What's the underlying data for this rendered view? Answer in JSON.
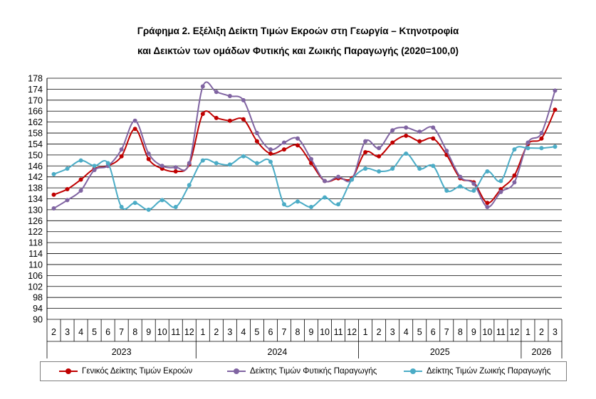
{
  "chart_data": {
    "type": "line",
    "title": "Γράφημα 2. Εξέλιξη Δείκτη Τιμών Εκροών στη Γεωργία – Κτηνοτροφία",
    "subtitle": "και Δεικτών των ομάδων Φυτικής και Ζωικής Παραγωγής (2020=100,0)",
    "ylim": [
      90,
      178
    ],
    "y_ticks": [
      90,
      94,
      98,
      102,
      106,
      110,
      114,
      118,
      122,
      126,
      130,
      134,
      138,
      142,
      146,
      150,
      154,
      158,
      162,
      166,
      170,
      174,
      178
    ],
    "grid": true,
    "legend_position": "bottom",
    "months": [
      "2",
      "3",
      "4",
      "5",
      "6",
      "7",
      "8",
      "9",
      "10",
      "11",
      "12",
      "1",
      "2",
      "3",
      "4",
      "5",
      "6",
      "7",
      "8",
      "9",
      "10",
      "11",
      "12",
      "1",
      "2",
      "3",
      "4",
      "5",
      "6",
      "7",
      "8",
      "9",
      "10",
      "11",
      "12",
      "1",
      "2",
      "3"
    ],
    "years": [
      {
        "label": "2023",
        "count": 11
      },
      {
        "label": "2024",
        "count": 12
      },
      {
        "label": "2025",
        "count": 12
      },
      {
        "label": "2026",
        "count": 3
      }
    ],
    "series": [
      {
        "name": "Γενικός Δείκτης Τιμών Εκροών",
        "color": "#c00000",
        "values": [
          135.5,
          137.5,
          141.0,
          145.0,
          146.0,
          149.5,
          159.5,
          148.5,
          145.0,
          144.0,
          146.5,
          165.0,
          163.5,
          162.5,
          163.0,
          155.0,
          150.5,
          152.0,
          153.5,
          147.0,
          140.5,
          141.5,
          141.5,
          151.0,
          149.5,
          154.5,
          157.0,
          155.0,
          156.0,
          150.0,
          141.5,
          140.0,
          132.5,
          137.5,
          142.5,
          154.0,
          156.0,
          166.5
        ]
      },
      {
        "name": "Δείκτης Τιμών Φυτικής Παραγωγής",
        "color": "#8064a2",
        "values": [
          130.5,
          133.5,
          137.0,
          144.5,
          146.0,
          152.0,
          162.5,
          150.5,
          146.0,
          145.5,
          147.0,
          175.0,
          173.0,
          171.5,
          170.0,
          158.0,
          152.0,
          154.5,
          156.0,
          148.5,
          140.5,
          142.0,
          141.0,
          155.0,
          152.5,
          159.0,
          160.0,
          158.5,
          160.0,
          151.5,
          142.0,
          139.5,
          131.0,
          136.5,
          140.0,
          154.5,
          158.0,
          173.5
        ]
      },
      {
        "name": "Δείκτης Τιμών Ζωικής Παραγωγής",
        "color": "#4bacc6",
        "values": [
          143.0,
          145.0,
          148.0,
          146.0,
          147.0,
          131.0,
          132.5,
          130.0,
          133.5,
          131.0,
          139.0,
          148.0,
          147.0,
          146.5,
          149.5,
          147.0,
          147.5,
          132.0,
          133.0,
          131.0,
          134.5,
          132.0,
          141.0,
          145.0,
          144.0,
          145.0,
          150.5,
          145.0,
          146.0,
          137.0,
          138.5,
          137.0,
          144.0,
          140.5,
          152.0,
          152.5,
          152.5,
          153.0
        ]
      }
    ]
  }
}
